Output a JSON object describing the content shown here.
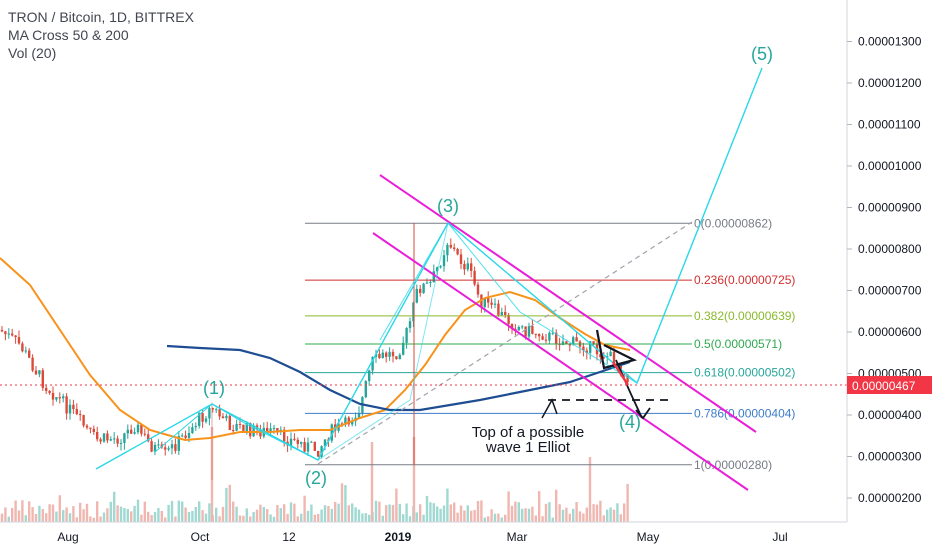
{
  "legend": {
    "title": "TRON / Bitcoin, 1D, BITTREX",
    "indicator_ma": "MA Cross 50 & 200",
    "indicator_vol": "Vol (20)"
  },
  "chart_data": {
    "type": "line",
    "symbol": "TRON / Bitcoin",
    "y_axis": {
      "ticks": [
        "0.00000200",
        "0.00000300",
        "0.00000400",
        "0.00000500",
        "0.00000600",
        "0.00000700",
        "0.00000800",
        "0.00000900",
        "0.00001000",
        "0.00001100",
        "0.00001200",
        "0.00001300"
      ],
      "tick_values": [
        2e-06,
        3e-06,
        4e-06,
        5e-06,
        6e-06,
        7e-06,
        8e-06,
        9e-06,
        1e-05,
        1.1e-05,
        1.2e-05,
        1.3e-05
      ],
      "range": [
        1.6e-06,
        1.37e-05
      ],
      "current_price_label": "0.00000467",
      "current_price": 4.67e-06
    },
    "x_axis": {
      "ticks": [
        "Aug",
        "Oct",
        "12",
        "2019",
        "Mar",
        "May",
        "Jul"
      ],
      "range": [
        "2018-06-25",
        "2019-07-20"
      ]
    },
    "fibonacci": [
      {
        "label": "0(0.00000862)",
        "value": 8.62e-06,
        "color": "#787b86"
      },
      {
        "label": "0.236(0.00000725)",
        "value": 7.25e-06,
        "color": "#d32f2f"
      },
      {
        "label": "0.382(0.00000639)",
        "value": 6.39e-06,
        "color": "#8bb92f"
      },
      {
        "label": "0.5(0.00000571)",
        "value": 5.71e-06,
        "color": "#2fa84f"
      },
      {
        "label": "0.618(0.00000502)",
        "value": 5.02e-06,
        "color": "#26a69a"
      },
      {
        "label": "0.786(0.00000404)",
        "value": 4.04e-06,
        "color": "#3d7cc9"
      },
      {
        "label": "1(0.00000280)",
        "value": 2.8e-06,
        "color": "#787b86"
      }
    ],
    "elliott_labels": [
      "(1)",
      "(2)",
      "(3)",
      "(4)",
      "(5)"
    ],
    "annotation": [
      "Top of a possible",
      "wave 1 Elliot"
    ],
    "series": [
      {
        "name": "MA 50",
        "color": "#f7931a"
      },
      {
        "name": "MA 200",
        "color": "#1e4d91"
      }
    ],
    "grid": false,
    "colors": {
      "up": "#26a69a",
      "down": "#d94a3a",
      "channel": "#e91ed9",
      "wave": "#29d7e7",
      "price_line": "#f23645"
    }
  }
}
